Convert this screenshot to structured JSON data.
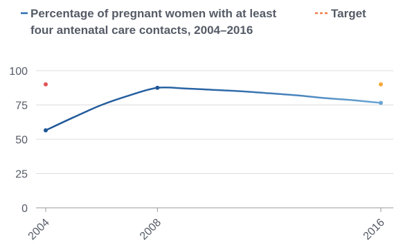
{
  "chart_data": {
    "type": "line",
    "x": [
      2004,
      2005,
      2006,
      2007,
      2008,
      2009,
      2010,
      2011,
      2012,
      2013,
      2014,
      2015,
      2016
    ],
    "series": [
      {
        "name": "Percentage of pregnant women with at least four antenatal care contacts, 2004–2016",
        "name_lines": [
          "Percentage of pregnant women with at least",
          "four antenatal care contacts, 2004–2016"
        ],
        "values": [
          56.5,
          66,
          75,
          82,
          87.5,
          87,
          86,
          85,
          83.5,
          82,
          80,
          78.5,
          76.5
        ],
        "style": "solid",
        "color_start": "#1f5797",
        "color_end": "#6aa5d4"
      },
      {
        "name": "Target",
        "name_lines": [
          "Target"
        ],
        "values": [
          90,
          90,
          90,
          90,
          90,
          90,
          90,
          90,
          90,
          90,
          90,
          90,
          90
        ],
        "style": "dashed",
        "color_start": "#e05555",
        "color_end": "#f4a93a"
      }
    ],
    "x_ticks": [
      "2004",
      "2008",
      "2016"
    ],
    "x_tick_values": [
      2004,
      2008,
      2016
    ],
    "y_ticks": [
      0,
      25,
      50,
      75,
      100
    ],
    "ylim": [
      0,
      100
    ],
    "xlim": [
      2004,
      2016
    ],
    "legend_position": "top",
    "grid": "horizontal"
  }
}
